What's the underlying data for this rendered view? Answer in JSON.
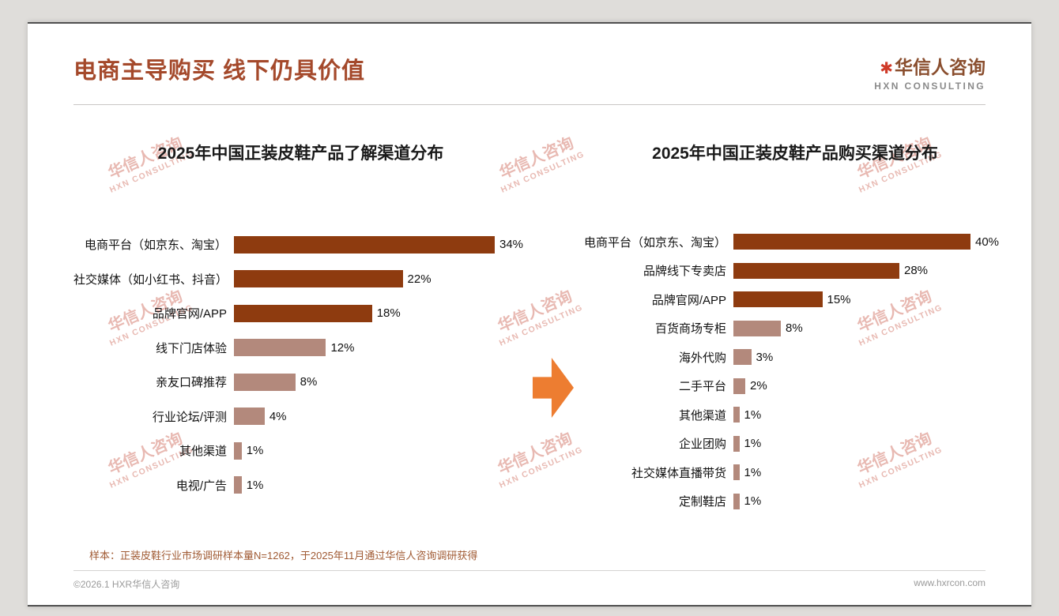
{
  "page": {
    "title": "电商主导购买 线下仍具价值",
    "logo": {
      "mark": "✱",
      "name": "华信人咨询",
      "subtitle": "HXN CONSULTING"
    },
    "watermark": {
      "line1": "华信人咨询",
      "line2": "HXN CONSULTING"
    },
    "sample_note": "样本：正装皮鞋行业市场调研样本量N=1262，于2025年11月通过华信人咨询调研获得",
    "footer": {
      "copyright": "©2026.1 HXR华信人咨询",
      "website": "www.hxrcon.com"
    }
  },
  "colors": {
    "primary_bar": "#8e3b0f",
    "secondary_bar": "#b3897c",
    "arrow": "#ed7d31",
    "title_text": "#a4492b",
    "note_text": "#a05a33"
  },
  "chart_data": [
    {
      "type": "bar",
      "orientation": "horizontal",
      "title": "2025年中国正装皮鞋产品了解渠道分布",
      "categories": [
        "电商平台（如京东、淘宝）",
        "社交媒体（如小红书、抖音）",
        "品牌官网/APP",
        "线下门店体验",
        "亲友口碑推荐",
        "行业论坛/评测",
        "其他渠道",
        "电视/广告"
      ],
      "values": [
        34,
        22,
        18,
        12,
        8,
        4,
        1,
        1
      ],
      "value_labels": [
        "34%",
        "22%",
        "18%",
        "12%",
        "8%",
        "4%",
        "1%",
        "1%"
      ],
      "xlim": [
        0,
        34
      ],
      "primary_color_count": 3,
      "grid": false,
      "legend": false
    },
    {
      "type": "bar",
      "orientation": "horizontal",
      "title": "2025年中国正装皮鞋产品购买渠道分布",
      "categories": [
        "电商平台（如京东、淘宝）",
        "品牌线下专卖店",
        "品牌官网/APP",
        "百货商场专柜",
        "海外代购",
        "二手平台",
        "其他渠道",
        "企业团购",
        "社交媒体直播带货",
        "定制鞋店"
      ],
      "values": [
        40,
        28,
        15,
        8,
        3,
        2,
        1,
        1,
        1,
        1
      ],
      "value_labels": [
        "40%",
        "28%",
        "15%",
        "8%",
        "3%",
        "2%",
        "1%",
        "1%",
        "1%",
        "1%"
      ],
      "xlim": [
        0,
        40
      ],
      "primary_color_count": 3,
      "grid": false,
      "legend": false
    }
  ]
}
